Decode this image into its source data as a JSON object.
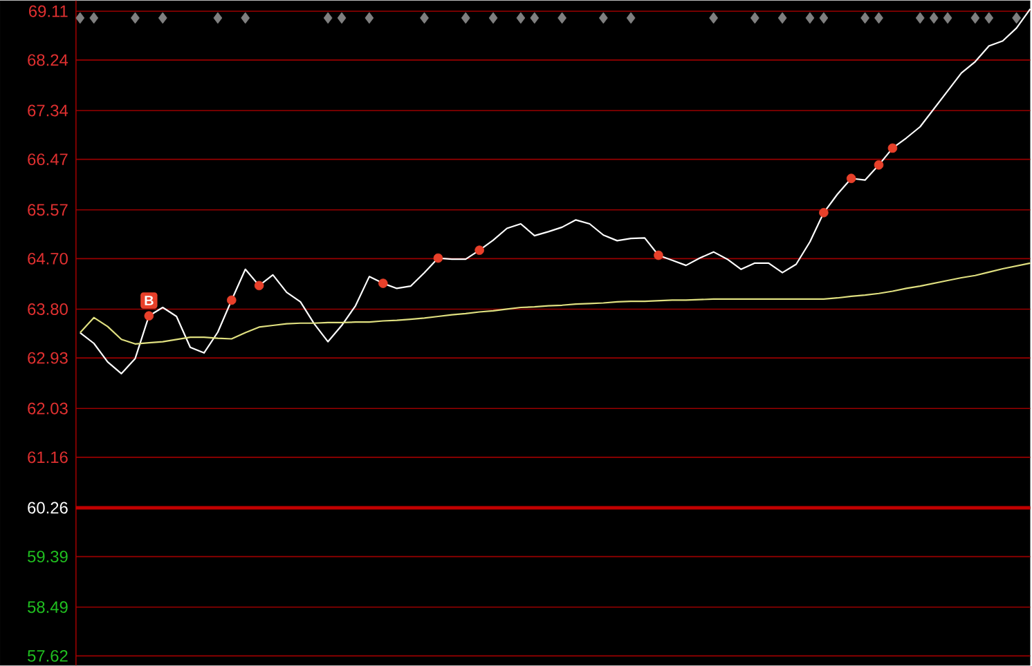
{
  "chart_data": {
    "type": "line",
    "categories": [
      null,
      null,
      null,
      null,
      null,
      null,
      null,
      null,
      null,
      null,
      null,
      null,
      null,
      null,
      null,
      null,
      null,
      null,
      null,
      null,
      null,
      null,
      null,
      null,
      null,
      null,
      null,
      null,
      null,
      null,
      null,
      null,
      null,
      null,
      null,
      null,
      null,
      null,
      null,
      null,
      null,
      null,
      null,
      null,
      null,
      null,
      null,
      null,
      null,
      null,
      null,
      null,
      null,
      null,
      null,
      null,
      null,
      null,
      null,
      null,
      null,
      null,
      null,
      null,
      null,
      null,
      null,
      null,
      null,
      null
    ],
    "ylim": [
      57.45,
      69.3
    ],
    "yticks": [
      57.62,
      58.49,
      59.39,
      60.26,
      61.16,
      62.03,
      62.93,
      {
        "value": 63.8,
        "label": "63.80"
      },
      {
        "value": 64.7,
        "label": "64.70"
      },
      65.57,
      66.47,
      67.34,
      68.24,
      69.11
    ],
    "tick_labels": "y",
    "grid": "y",
    "ref_lines": [
      {
        "axis": "y",
        "value": 60.26,
        "color": "#c00000"
      }
    ],
    "annotations": [
      "B"
    ],
    "series": [
      {
        "color": "#ffffff",
        "marker": "none",
        "values": [
          63.38,
          63.19,
          62.86,
          62.65,
          62.92,
          63.68,
          63.83,
          63.67,
          63.12,
          63.02,
          63.39,
          63.96,
          64.51,
          64.22,
          64.41,
          64.1,
          63.93,
          63.54,
          63.22,
          63.51,
          63.86,
          64.38,
          64.26,
          64.17,
          64.21,
          64.45,
          64.71,
          64.69,
          64.69,
          64.85,
          65.03,
          65.24,
          65.32,
          65.11,
          65.18,
          65.26,
          65.39,
          65.32,
          65.12,
          65.02,
          65.06,
          65.07,
          64.76,
          64.67,
          64.58,
          64.71,
          64.82,
          64.69,
          64.51,
          64.62,
          64.62,
          64.45,
          64.6,
          65.0,
          65.52,
          65.85,
          66.13,
          66.1,
          66.37,
          66.67,
          66.85,
          67.05,
          67.37,
          67.69,
          68.01,
          68.21,
          68.49,
          68.58,
          68.81,
          69.15
        ]
      },
      {
        "color": "#e0e080",
        "marker": "none",
        "values": [
          63.38,
          63.65,
          63.49,
          63.26,
          63.18,
          63.2,
          63.22,
          63.26,
          63.3,
          63.3,
          63.28,
          63.27,
          63.38,
          63.48,
          63.51,
          63.54,
          63.55,
          63.55,
          63.56,
          63.56,
          63.57,
          63.57,
          63.59,
          63.6,
          63.62,
          63.64,
          63.67,
          63.7,
          63.72,
          63.75,
          63.77,
          63.8,
          63.83,
          63.84,
          63.86,
          63.87,
          63.89,
          63.9,
          63.91,
          63.93,
          63.94,
          63.94,
          63.95,
          63.96,
          63.96,
          63.97,
          63.98,
          63.98,
          63.98,
          63.98,
          63.98,
          63.98,
          63.98,
          63.98,
          63.98,
          64.0,
          64.03,
          64.05,
          64.08,
          64.12,
          64.17,
          64.21,
          64.26,
          64.31,
          64.36,
          64.4,
          64.46,
          64.52,
          64.57,
          64.62
        ]
      },
      {
        "type": "scatter",
        "color": "#e8402a",
        "marker": "circle",
        "values": [
          null,
          null,
          null,
          null,
          null,
          63.68,
          null,
          null,
          null,
          null,
          null,
          63.96,
          null,
          64.22,
          null,
          null,
          null,
          null,
          null,
          null,
          null,
          null,
          64.26,
          null,
          null,
          null,
          64.71,
          null,
          null,
          64.85,
          null,
          null,
          null,
          null,
          null,
          null,
          null,
          null,
          null,
          null,
          null,
          null,
          64.76,
          null,
          null,
          null,
          null,
          null,
          null,
          null,
          null,
          null,
          null,
          null,
          65.52,
          null,
          66.13,
          null,
          66.37,
          66.67,
          null,
          null,
          null,
          null,
          null,
          null,
          null,
          null,
          null,
          null
        ]
      },
      {
        "type": "scatter",
        "color": "#808080",
        "marker": "diamond",
        "values": [
          68.99,
          68.99,
          null,
          null,
          68.99,
          null,
          68.99,
          null,
          null,
          null,
          68.99,
          null,
          68.99,
          null,
          null,
          null,
          null,
          null,
          68.99,
          68.99,
          null,
          68.99,
          null,
          null,
          null,
          68.99,
          null,
          null,
          68.99,
          null,
          68.99,
          null,
          68.99,
          68.99,
          null,
          68.99,
          null,
          null,
          68.99,
          null,
          68.99,
          null,
          null,
          null,
          null,
          null,
          68.99,
          null,
          null,
          68.99,
          null,
          68.99,
          null,
          68.99,
          68.99,
          null,
          null,
          68.99,
          68.99,
          null,
          null,
          68.99,
          68.99,
          68.99,
          null,
          68.99,
          68.99,
          null,
          68.99,
          null
        ]
      }
    ]
  }
}
